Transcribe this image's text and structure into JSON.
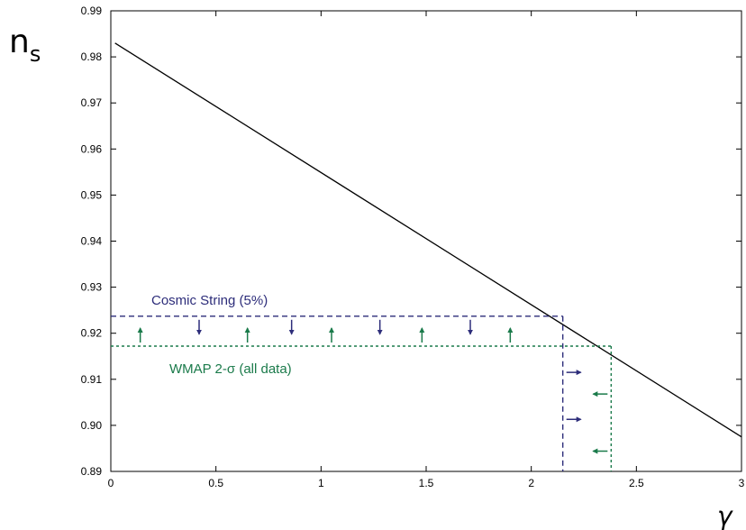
{
  "chart_data": {
    "type": "line",
    "xlabel": "γ",
    "ylabel": {
      "base": "n",
      "sub": "s"
    },
    "xlim": [
      0,
      3
    ],
    "ylim": [
      0.89,
      0.99
    ],
    "x_ticks": [
      0,
      0.5,
      1,
      1.5,
      2,
      2.5,
      3
    ],
    "x_tick_labels": [
      "0",
      "0.5",
      "1",
      "1.5",
      "2",
      "2.5",
      "3"
    ],
    "y_ticks": [
      0.89,
      0.9,
      0.91,
      0.92,
      0.93,
      0.94,
      0.95,
      0.96,
      0.97,
      0.98,
      0.99
    ],
    "y_tick_labels": [
      "0.89",
      "0.90",
      "0.91",
      "0.92",
      "0.93",
      "0.94",
      "0.95",
      "0.96",
      "0.97",
      "0.98",
      "0.99"
    ],
    "grid": false,
    "series": [
      {
        "x": [
          0.02,
          3.0
        ],
        "y": [
          0.983,
          0.8975
        ],
        "color": "#000000",
        "style": "solid"
      }
    ],
    "bounds": [
      {
        "label": "Cosmic String (5%)",
        "color": "#2d2d7a",
        "y": 0.9237,
        "x": 2.15,
        "y_arrows": {
          "direction": "down",
          "x": [
            0.42,
            0.86,
            1.28,
            1.71
          ]
        },
        "x_arrows": {
          "direction": "right",
          "y": [
            0.9115,
            0.9013
          ]
        }
      },
      {
        "label": "WMAP 2-σ (all data)",
        "color": "#1a7a4a",
        "y": 0.9172,
        "x": 2.38,
        "y_arrows": {
          "direction": "up",
          "x": [
            0.14,
            0.65,
            1.05,
            1.48,
            1.9
          ]
        },
        "x_arrows": {
          "direction": "left",
          "y": [
            0.9068,
            0.8944
          ]
        }
      }
    ]
  }
}
